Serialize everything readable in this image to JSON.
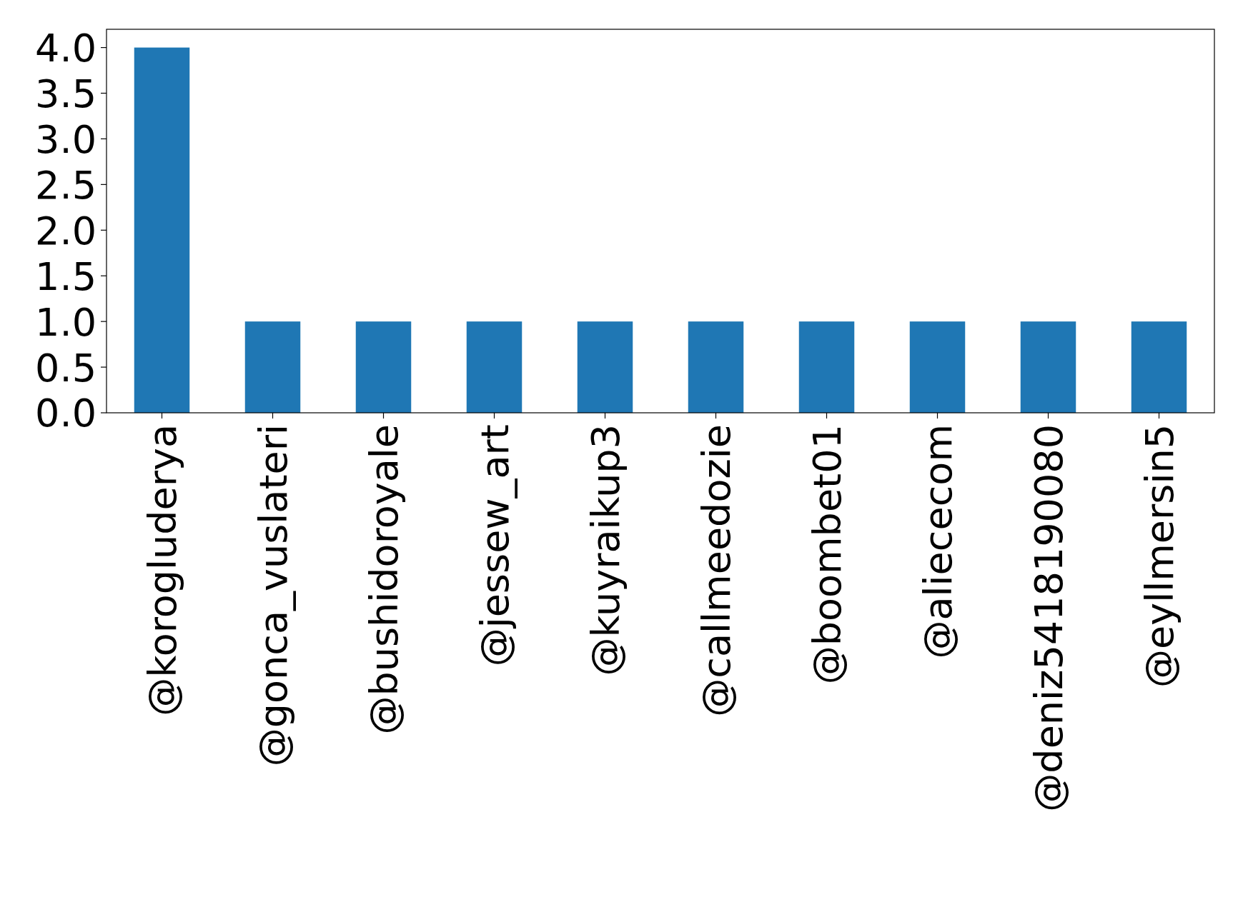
{
  "chart_data": {
    "type": "bar",
    "categories": [
      "@korogluderya",
      "@gonca_vuslateri",
      "@bushidoroyale",
      "@jessew_art",
      "@kuyraikup3",
      "@callmeedozie",
      "@boombet01",
      "@aliececom",
      "@deniz5418190080",
      "@eyllmersin5"
    ],
    "values": [
      4,
      1,
      1,
      1,
      1,
      1,
      1,
      1,
      1,
      1
    ],
    "color": "#1f77b4",
    "ylim": [
      0,
      4.2
    ],
    "yticks": [
      {
        "value": 0,
        "label": "0.0"
      },
      {
        "value": 0.5,
        "label": "0.5"
      },
      {
        "value": 1,
        "label": "1.0"
      },
      {
        "value": 1.5,
        "label": "1.5"
      },
      {
        "value": 2,
        "label": "2.0"
      },
      {
        "value": 2.5,
        "label": "2.5"
      },
      {
        "value": 3,
        "label": "3.0"
      },
      {
        "value": 3.5,
        "label": "3.5"
      },
      {
        "value": 4,
        "label": "4.0"
      }
    ],
    "grid": false
  }
}
